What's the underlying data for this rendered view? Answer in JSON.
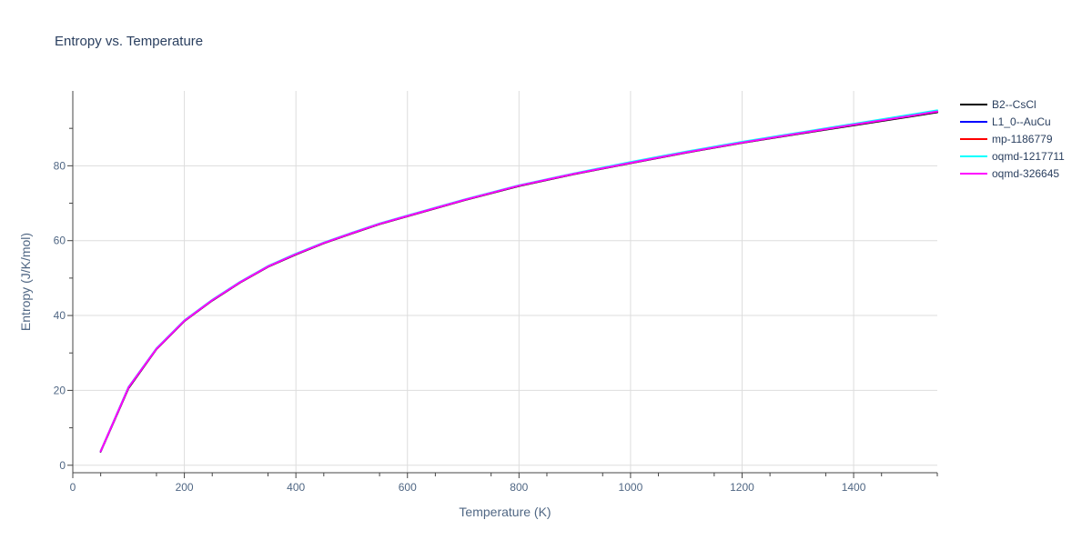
{
  "chart_data": {
    "type": "line",
    "title": "Entropy vs. Temperature",
    "xlabel": "Temperature (K)",
    "ylabel": "Entropy (J/K/mol)",
    "xlim": [
      0,
      1550
    ],
    "ylim": [
      -2,
      100
    ],
    "x_ticks": [
      0,
      200,
      400,
      600,
      800,
      1000,
      1200,
      1400
    ],
    "y_ticks": [
      0,
      20,
      40,
      60,
      80
    ],
    "grid": true,
    "legend_position": "right",
    "series": [
      {
        "name": "B2--CsCl",
        "color": "#000000",
        "x": [
          50,
          100,
          150,
          200,
          250,
          300,
          350,
          400,
          450,
          500,
          550,
          600,
          700,
          800,
          900,
          1000,
          1100,
          1200,
          1300,
          1400,
          1500,
          1550
        ],
        "y": [
          3.6,
          20.6,
          31.0,
          38.5,
          44.0,
          48.8,
          53.0,
          56.3,
          59.3,
          61.9,
          64.4,
          66.5,
          70.7,
          74.6,
          77.8,
          80.7,
          83.5,
          86.1,
          88.5,
          90.8,
          93.1,
          94.3
        ]
      },
      {
        "name": "L1_0--AuCu",
        "color": "#0000ff",
        "x": [
          50,
          100,
          150,
          200,
          250,
          300,
          350,
          400,
          450,
          500,
          550,
          600,
          700,
          800,
          900,
          1000,
          1100,
          1200,
          1300,
          1400,
          1500,
          1550
        ],
        "y": [
          3.7,
          20.8,
          31.1,
          38.6,
          44.1,
          48.9,
          53.1,
          56.4,
          59.4,
          62.0,
          64.5,
          66.6,
          70.8,
          74.7,
          77.9,
          80.8,
          83.6,
          86.2,
          88.6,
          91.0,
          93.3,
          94.5
        ]
      },
      {
        "name": "mp-1186779",
        "color": "#ff0000",
        "x": [
          50,
          100,
          150,
          200,
          250,
          300,
          350,
          400,
          450,
          500,
          550,
          600,
          700,
          800,
          900,
          1000,
          1100,
          1200,
          1300,
          1400,
          1500,
          1550
        ],
        "y": [
          3.7,
          20.8,
          31.1,
          38.6,
          44.1,
          48.9,
          53.1,
          56.4,
          59.4,
          62.0,
          64.5,
          66.6,
          70.8,
          74.7,
          77.9,
          80.8,
          83.6,
          86.2,
          88.6,
          91.0,
          93.3,
          94.5
        ]
      },
      {
        "name": "oqmd-1217711",
        "color": "#00ffff",
        "x": [
          50,
          100,
          150,
          200,
          250,
          300,
          350,
          400,
          450,
          500,
          550,
          600,
          700,
          800,
          900,
          1000,
          1100,
          1200,
          1300,
          1400,
          1500,
          1550
        ],
        "y": [
          3.7,
          20.9,
          31.2,
          38.7,
          44.2,
          49.0,
          53.2,
          56.5,
          59.5,
          62.1,
          64.6,
          66.7,
          70.9,
          74.8,
          78.0,
          81.0,
          83.8,
          86.4,
          88.8,
          91.2,
          93.6,
          94.8
        ]
      },
      {
        "name": "oqmd-326645",
        "color": "#ff00ff",
        "x": [
          50,
          100,
          150,
          200,
          250,
          300,
          350,
          400,
          450,
          500,
          550,
          600,
          700,
          800,
          900,
          1000,
          1100,
          1200,
          1300,
          1400,
          1500,
          1550
        ],
        "y": [
          3.7,
          20.8,
          31.1,
          38.6,
          44.1,
          48.9,
          53.1,
          56.4,
          59.4,
          62.0,
          64.5,
          66.6,
          70.8,
          74.7,
          77.9,
          80.8,
          83.6,
          86.2,
          88.6,
          91.0,
          93.3,
          94.5
        ]
      }
    ]
  }
}
